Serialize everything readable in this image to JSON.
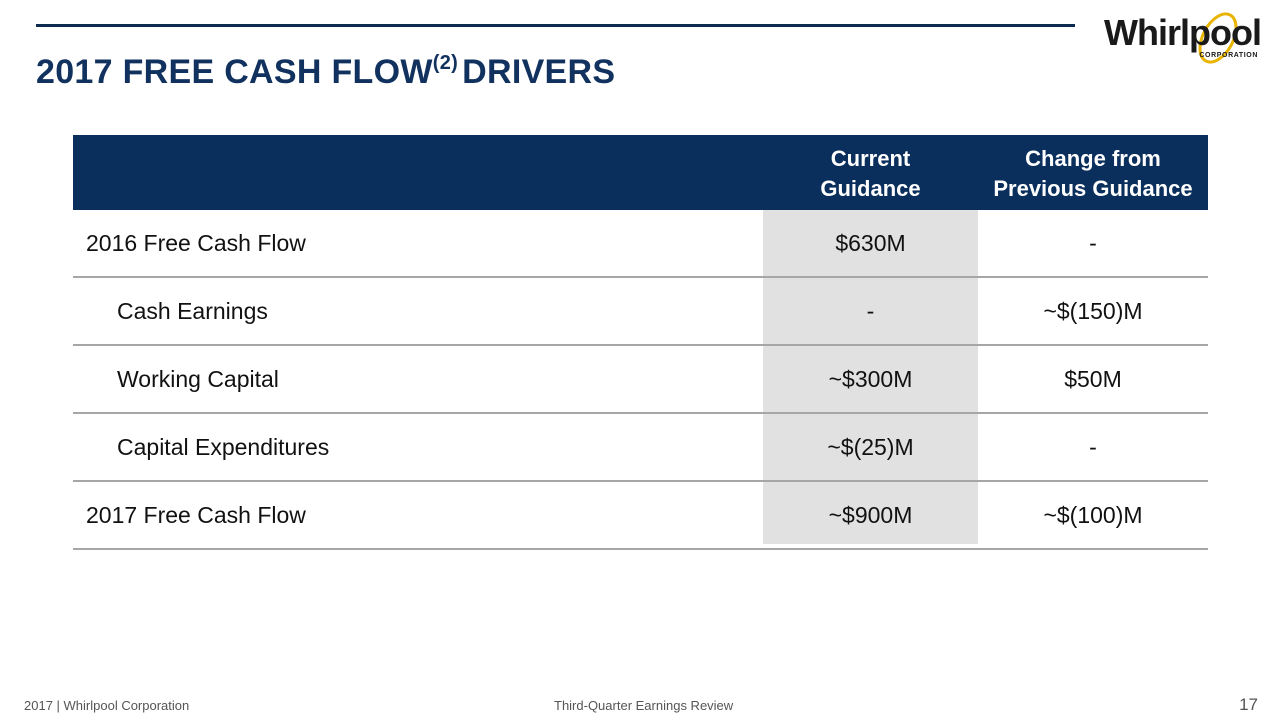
{
  "title": {
    "main": "2017 FREE CASH FLOW",
    "superscript": "(2)",
    "suffix": "DRIVERS"
  },
  "logo": {
    "word": "Whirlpool",
    "sub": "CORPORATION",
    "accent_color": "#e8b400"
  },
  "table": {
    "header": {
      "col2": [
        "Current",
        "Guidance"
      ],
      "col3": [
        "Change from",
        "Previous Guidance"
      ]
    },
    "rows": [
      {
        "label": "2016 Free Cash Flow",
        "current": "$630M",
        "change": "-"
      },
      {
        "label": "Cash Earnings",
        "current": "-",
        "change": "~$(150)M"
      },
      {
        "label": "Working Capital",
        "current": "~$300M",
        "change": "$50M"
      },
      {
        "label": "Capital Expenditures",
        "current": "~$(25)M",
        "change": "-"
      },
      {
        "label": "2017 Free Cash Flow",
        "current": "~$900M",
        "change": "~$(100)M"
      }
    ]
  },
  "footer": {
    "left": "2017 | Whirlpool Corporation",
    "center": "Third-Quarter Earnings Review",
    "page": "17"
  },
  "colors": {
    "header_bg": "#0b2f5c",
    "title": "#11315e",
    "shade": "#e1e1e1"
  }
}
